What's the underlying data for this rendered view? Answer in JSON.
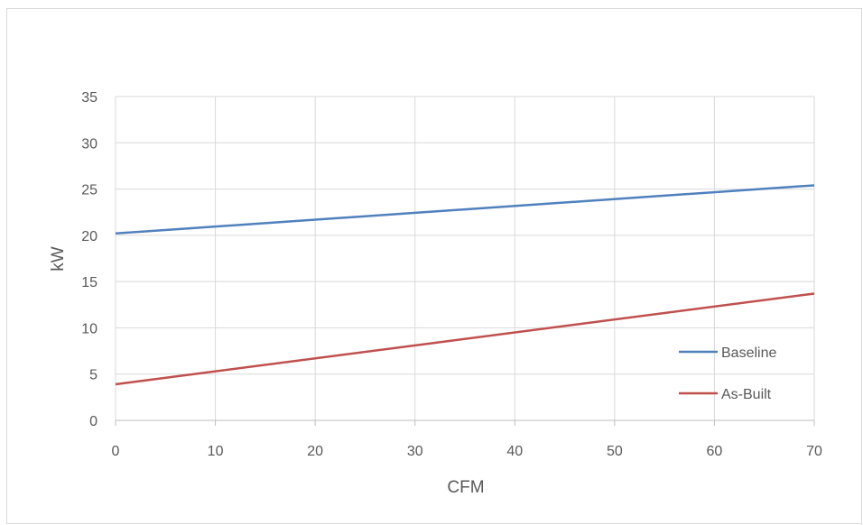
{
  "chart_data": {
    "type": "line",
    "title": "",
    "xlabel": "CFM",
    "ylabel": "kW",
    "xlim": [
      0,
      70
    ],
    "ylim": [
      0,
      35
    ],
    "x_ticks": [
      0,
      10,
      20,
      30,
      40,
      50,
      60,
      70
    ],
    "y_ticks": [
      0,
      5,
      10,
      15,
      20,
      25,
      30,
      35
    ],
    "grid": true,
    "legend_position": "bottom-right",
    "series": [
      {
        "name": "Baseline",
        "color": "#4f81bd",
        "x": [
          0,
          70
        ],
        "y": [
          20.2,
          25.4
        ]
      },
      {
        "name": "As-Built",
        "color": "#c0504d",
        "x": [
          0,
          70
        ],
        "y": [
          3.9,
          13.7
        ]
      }
    ]
  }
}
